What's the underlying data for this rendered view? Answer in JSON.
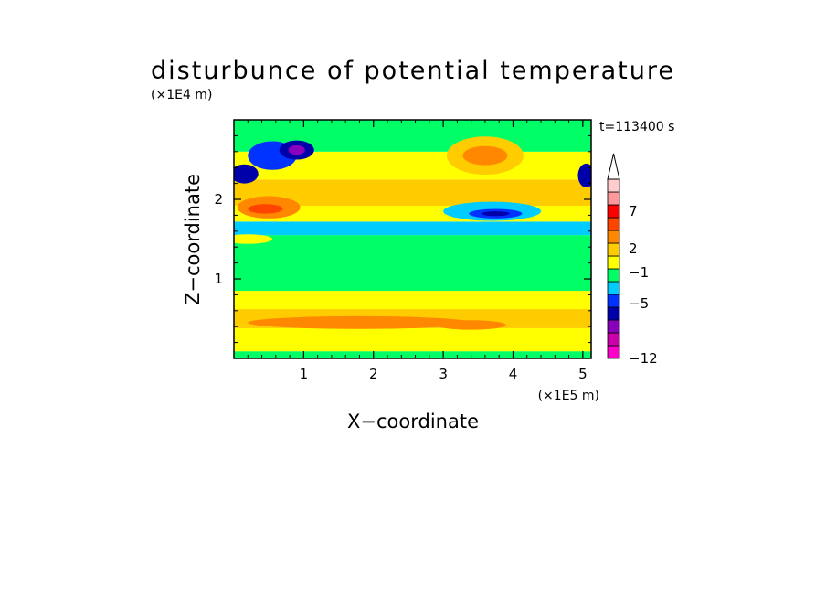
{
  "chart_data": {
    "type": "heatmap",
    "title": "disturbunce of potential temperature",
    "time_label": "t=113400 s",
    "xlabel": "X−coordinate",
    "ylabel": "Z−coordinate",
    "x_unit": "(×1E5 m)",
    "y_unit": "(×1E4 m)",
    "xlim": [
      0,
      5.12
    ],
    "ylim": [
      0,
      3.0
    ],
    "x_ticks": [
      1,
      2,
      3,
      4,
      5
    ],
    "y_ticks": [
      1,
      2
    ],
    "x_tick_labels": [
      "1",
      "2",
      "3",
      "4",
      "5"
    ],
    "y_tick_labels": [
      "1",
      "2"
    ],
    "colorbar": {
      "extend": "max",
      "labels": [
        {
          "value": 7,
          "text": "7"
        },
        {
          "value": 2,
          "text": "2"
        },
        {
          "value": -1,
          "text": "−1"
        },
        {
          "value": -5,
          "text": "−5"
        },
        {
          "value": -12,
          "text": "−12"
        }
      ],
      "colors": [
        "#ff00cc",
        "#cc00aa",
        "#8800bb",
        "#0000aa",
        "#0033ff",
        "#00ccff",
        "#00ff66",
        "#ffff00",
        "#ffcc00",
        "#ff8800",
        "#ff4400",
        "#ff0000",
        "#ff9999",
        "#ffcccc"
      ]
    },
    "bands": [
      {
        "z": [
          0.0,
          0.09
        ],
        "color": "#00ff66"
      },
      {
        "z": [
          0.09,
          0.38
        ],
        "color": "#ffff00"
      },
      {
        "z": [
          0.38,
          0.62
        ],
        "color": "#ffcc00"
      },
      {
        "z": [
          0.62,
          0.85
        ],
        "color": "#ffff00"
      },
      {
        "z": [
          0.85,
          1.55
        ],
        "color": "#00ff66"
      },
      {
        "z": [
          1.55,
          1.72
        ],
        "color": "#00ccff"
      },
      {
        "z": [
          1.72,
          1.92
        ],
        "color": "#ffff00"
      },
      {
        "z": [
          1.92,
          2.25
        ],
        "color": "#ffcc00"
      },
      {
        "z": [
          2.25,
          2.6
        ],
        "color": "#ffff00"
      },
      {
        "z": [
          2.6,
          3.0
        ],
        "color": "#00ff66"
      }
    ],
    "features": [
      {
        "x": 3.6,
        "z": 2.55,
        "rx": 0.55,
        "rz": 0.24,
        "color": "#ffcc00"
      },
      {
        "x": 3.6,
        "z": 2.55,
        "rx": 0.32,
        "rz": 0.12,
        "color": "#ff8800"
      },
      {
        "x": 3.7,
        "z": 1.85,
        "rx": 0.7,
        "rz": 0.12,
        "color": "#00ccff"
      },
      {
        "x": 3.75,
        "z": 1.82,
        "rx": 0.38,
        "rz": 0.06,
        "color": "#0033ff"
      },
      {
        "x": 3.75,
        "z": 1.82,
        "rx": 0.2,
        "rz": 0.03,
        "color": "#0000aa"
      },
      {
        "x": 0.5,
        "z": 1.9,
        "rx": 0.45,
        "rz": 0.14,
        "color": "#ff8800"
      },
      {
        "x": 0.45,
        "z": 1.88,
        "rx": 0.25,
        "rz": 0.06,
        "color": "#ff4400"
      },
      {
        "x": 0.55,
        "z": 2.55,
        "rx": 0.35,
        "rz": 0.18,
        "color": "#0033ff"
      },
      {
        "x": 0.9,
        "z": 2.62,
        "rx": 0.25,
        "rz": 0.12,
        "color": "#0000aa"
      },
      {
        "x": 0.9,
        "z": 2.62,
        "rx": 0.12,
        "rz": 0.06,
        "color": "#8800bb"
      },
      {
        "x": 0.15,
        "z": 2.32,
        "rx": 0.2,
        "rz": 0.12,
        "color": "#0000aa"
      },
      {
        "x": 5.05,
        "z": 2.3,
        "rx": 0.12,
        "rz": 0.15,
        "color": "#0000aa"
      },
      {
        "x": 1.8,
        "z": 0.45,
        "rx": 1.6,
        "rz": 0.08,
        "color": "#ff8800"
      },
      {
        "x": 3.4,
        "z": 0.42,
        "rx": 0.5,
        "rz": 0.06,
        "color": "#ff8800"
      },
      {
        "x": 4.3,
        "z": 1.4,
        "rx": 0.9,
        "rz": 0.08,
        "color": "#00ff66"
      },
      {
        "x": 1.5,
        "z": 1.62,
        "rx": 0.7,
        "rz": 0.06,
        "color": "#00ccff"
      },
      {
        "x": 0.2,
        "z": 1.5,
        "rx": 0.35,
        "rz": 0.06,
        "color": "#ffff00"
      }
    ]
  }
}
